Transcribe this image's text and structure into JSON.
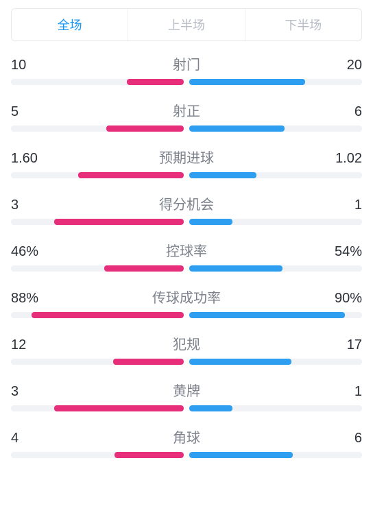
{
  "colors": {
    "home": "#e62e7b",
    "away": "#2e9ff0",
    "track": "#f1f2f5",
    "tab_active": "#1a96f0",
    "tab_inactive": "#b7bcc5",
    "value_text": "#2b2f36",
    "label_text": "#7d828c"
  },
  "tabs": {
    "active_index": 0,
    "items": [
      "全场",
      "上半场",
      "下半场"
    ]
  },
  "stats": [
    {
      "label": "射门",
      "home_display": "10",
      "away_display": "20",
      "home_pct": 33,
      "away_pct": 67
    },
    {
      "label": "射正",
      "home_display": "5",
      "away_display": "6",
      "home_pct": 45,
      "away_pct": 55
    },
    {
      "label": "预期进球",
      "home_display": "1.60",
      "away_display": "1.02",
      "home_pct": 61,
      "away_pct": 39
    },
    {
      "label": "得分机会",
      "home_display": "3",
      "away_display": "1",
      "home_pct": 75,
      "away_pct": 25
    },
    {
      "label": "控球率",
      "home_display": "46%",
      "away_display": "54%",
      "home_pct": 46,
      "away_pct": 54
    },
    {
      "label": "传球成功率",
      "home_display": "88%",
      "away_display": "90%",
      "home_pct": 88,
      "away_pct": 90
    },
    {
      "label": "犯规",
      "home_display": "12",
      "away_display": "17",
      "home_pct": 41,
      "away_pct": 59
    },
    {
      "label": "黄牌",
      "home_display": "3",
      "away_display": "1",
      "home_pct": 75,
      "away_pct": 25
    },
    {
      "label": "角球",
      "home_display": "4",
      "away_display": "6",
      "home_pct": 40,
      "away_pct": 60
    }
  ]
}
